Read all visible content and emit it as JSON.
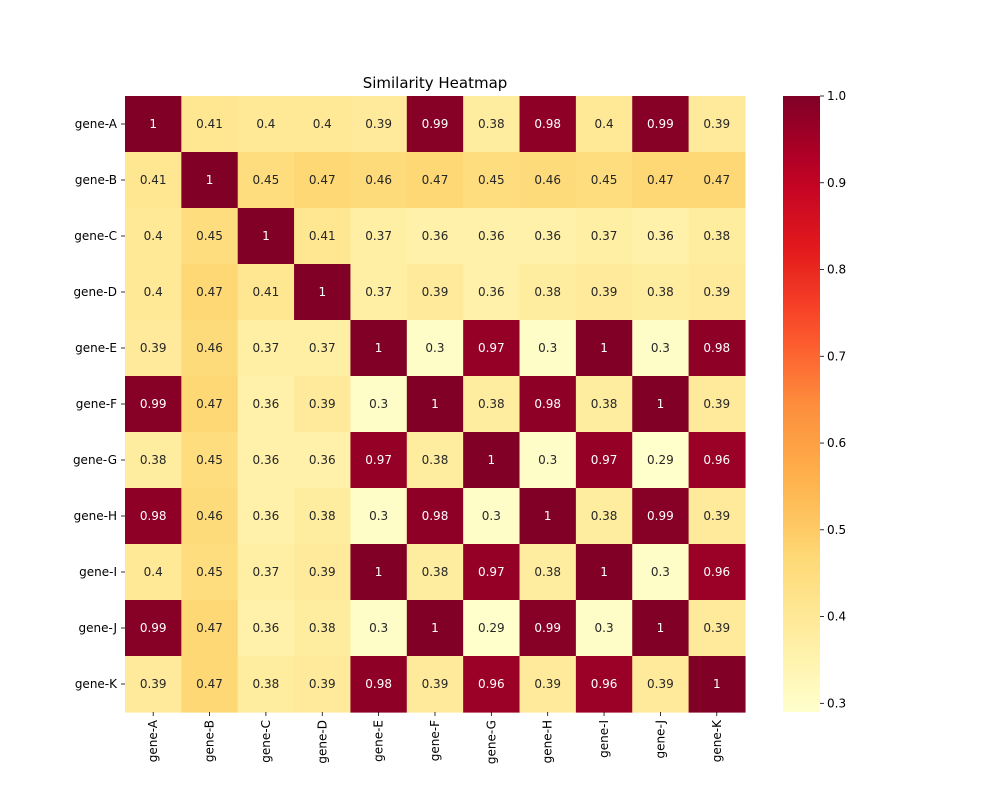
{
  "chart_data": {
    "type": "heatmap",
    "title": "Similarity Heatmap",
    "xlabel": "",
    "ylabel": "",
    "rows": [
      "gene-A",
      "gene-B",
      "gene-C",
      "gene-D",
      "gene-E",
      "gene-F",
      "gene-G",
      "gene-H",
      "gene-I",
      "gene-J",
      "gene-K"
    ],
    "columns": [
      "gene-A",
      "gene-B",
      "gene-C",
      "gene-D",
      "gene-E",
      "gene-F",
      "gene-G",
      "gene-H",
      "gene-I",
      "gene-J",
      "gene-K"
    ],
    "values": [
      [
        1,
        0.41,
        0.4,
        0.4,
        0.39,
        0.99,
        0.38,
        0.98,
        0.4,
        0.99,
        0.39
      ],
      [
        0.41,
        1,
        0.45,
        0.47,
        0.46,
        0.47,
        0.45,
        0.46,
        0.45,
        0.47,
        0.47
      ],
      [
        0.4,
        0.45,
        1,
        0.41,
        0.37,
        0.36,
        0.36,
        0.36,
        0.37,
        0.36,
        0.38
      ],
      [
        0.4,
        0.47,
        0.41,
        1,
        0.37,
        0.39,
        0.36,
        0.38,
        0.39,
        0.38,
        0.39
      ],
      [
        0.39,
        0.46,
        0.37,
        0.37,
        1,
        0.3,
        0.97,
        0.3,
        1,
        0.3,
        0.98
      ],
      [
        0.99,
        0.47,
        0.36,
        0.39,
        0.3,
        1,
        0.38,
        0.98,
        0.38,
        1,
        0.39
      ],
      [
        0.38,
        0.45,
        0.36,
        0.36,
        0.97,
        0.38,
        1,
        0.3,
        0.97,
        0.29,
        0.96
      ],
      [
        0.98,
        0.46,
        0.36,
        0.38,
        0.3,
        0.98,
        0.3,
        1,
        0.38,
        0.99,
        0.39
      ],
      [
        0.4,
        0.45,
        0.37,
        0.39,
        1,
        0.38,
        0.97,
        0.38,
        1,
        0.3,
        0.96
      ],
      [
        0.99,
        0.47,
        0.36,
        0.38,
        0.3,
        1,
        0.29,
        0.99,
        0.3,
        1,
        0.39
      ],
      [
        0.39,
        0.47,
        0.38,
        0.39,
        0.98,
        0.39,
        0.96,
        0.39,
        0.96,
        0.39,
        1
      ]
    ],
    "colorscale": "YlOrRd",
    "color_range": [
      0.29,
      1.0
    ],
    "colorbar_ticks": [
      "0.3",
      "0.4",
      "0.5",
      "0.6",
      "0.7",
      "0.8",
      "0.9",
      "1.0"
    ],
    "annotations": true,
    "grid": false
  }
}
